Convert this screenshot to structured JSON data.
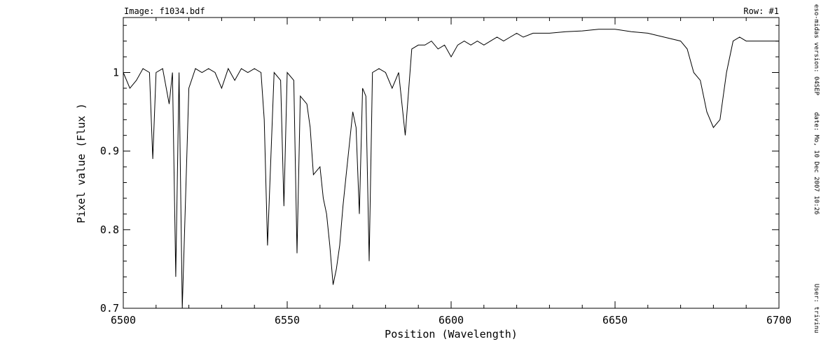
{
  "header": {
    "image_label": "Image: f1034.bdf",
    "row_label": "Row: #1"
  },
  "side_info": {
    "version": "eso-midas version: 04SEP",
    "date": "date: Mo, 10 Dec 2007 10:26",
    "user": "User: trivinu"
  },
  "chart_data": {
    "type": "line",
    "title": "",
    "xlabel": "Position (Wavelength)",
    "ylabel": "Pixel value (Flux )",
    "xlim": [
      6500,
      6700
    ],
    "ylim": [
      0.7,
      1.07
    ],
    "xticks": [
      6500,
      6550,
      6600,
      6650,
      6700
    ],
    "yticks": [
      0.7,
      0.8,
      0.9,
      1
    ],
    "grid": false,
    "series": [
      {
        "x": [
          6500,
          6502,
          6504,
          6506,
          6508,
          6509,
          6510,
          6512,
          6514,
          6515,
          6516,
          6517,
          6518,
          6520,
          6522,
          6524,
          6526,
          6528,
          6530,
          6532,
          6534,
          6536,
          6538,
          6540,
          6542,
          6543,
          6544,
          6546,
          6548,
          6549,
          6550,
          6552,
          6553,
          6554,
          6556,
          6557,
          6558,
          6560,
          6561,
          6562,
          6563,
          6564,
          6565,
          6566,
          6567,
          6568,
          6569,
          6570,
          6571,
          6572,
          6573,
          6574,
          6575,
          6576,
          6578,
          6580,
          6582,
          6584,
          6586,
          6588,
          6590,
          6592,
          6594,
          6596,
          6598,
          6600,
          6602,
          6604,
          6606,
          6608,
          6610,
          6612,
          6614,
          6616,
          6618,
          6620,
          6622,
          6625,
          6630,
          6635,
          6640,
          6645,
          6650,
          6655,
          6660,
          6665,
          6670,
          6672,
          6674,
          6676,
          6678,
          6680,
          6682,
          6684,
          6686,
          6688,
          6690,
          6695,
          6700
        ],
        "values": [
          1.0,
          0.98,
          0.99,
          1.005,
          1.0,
          0.89,
          1.0,
          1.005,
          0.96,
          1.0,
          0.74,
          1.0,
          0.7,
          0.98,
          1.005,
          1.0,
          1.005,
          1.0,
          0.98,
          1.005,
          0.99,
          1.005,
          1.0,
          1.005,
          1.0,
          0.94,
          0.78,
          1.0,
          0.99,
          0.83,
          1.0,
          0.99,
          0.77,
          0.97,
          0.96,
          0.93,
          0.87,
          0.88,
          0.84,
          0.82,
          0.78,
          0.73,
          0.75,
          0.78,
          0.83,
          0.87,
          0.91,
          0.95,
          0.93,
          0.82,
          0.98,
          0.97,
          0.76,
          1.0,
          1.005,
          1.0,
          0.98,
          1.0,
          0.92,
          1.03,
          1.035,
          1.035,
          1.04,
          1.03,
          1.035,
          1.02,
          1.035,
          1.04,
          1.035,
          1.04,
          1.035,
          1.04,
          1.045,
          1.04,
          1.045,
          1.05,
          1.045,
          1.05,
          1.05,
          1.052,
          1.053,
          1.055,
          1.055,
          1.052,
          1.05,
          1.045,
          1.04,
          1.03,
          1.0,
          0.99,
          0.95,
          0.93,
          0.94,
          1.0,
          1.04,
          1.045,
          1.04,
          1.04,
          1.04
        ]
      }
    ]
  }
}
